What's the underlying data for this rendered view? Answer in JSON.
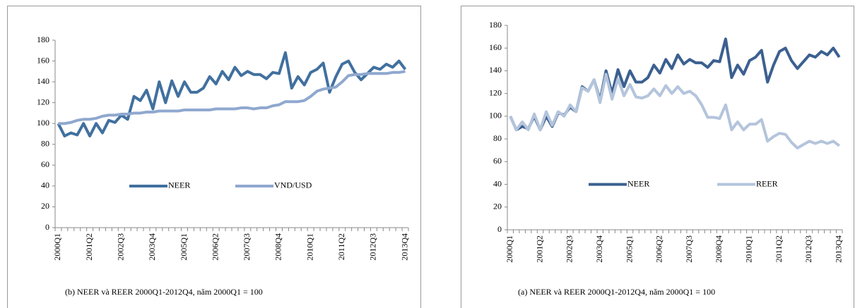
{
  "chart_data": [
    {
      "type": "line",
      "caption": "(b) NEER và REER  2000Q1-2012Q4, năm 2000Q1 = 100",
      "categories": [
        "2000Q1",
        null,
        null,
        null,
        null,
        "2001Q2",
        null,
        null,
        null,
        null,
        "2002Q3",
        null,
        null,
        null,
        null,
        "2003Q4",
        null,
        null,
        null,
        null,
        "2005Q1",
        null,
        null,
        null,
        null,
        "2006Q2",
        null,
        null,
        null,
        null,
        "2007Q3",
        null,
        null,
        null,
        null,
        "2008Q4",
        null,
        null,
        null,
        null,
        "2010Q1",
        null,
        null,
        null,
        null,
        "2011Q2",
        null,
        null,
        null,
        null,
        "2012Q3",
        null,
        null,
        null,
        null,
        "2013Q4"
      ],
      "series": [
        {
          "name": "NEER",
          "color": "#41709f",
          "values": [
            100,
            88,
            91,
            89,
            100,
            88,
            100,
            91,
            103,
            101,
            108,
            104,
            126,
            122,
            132,
            114,
            140,
            120,
            141,
            126,
            140,
            130,
            130,
            134,
            145,
            138,
            150,
            142,
            154,
            146,
            150,
            147,
            147,
            143,
            149,
            148,
            168,
            134,
            145,
            137,
            149,
            152,
            158,
            130,
            145,
            157,
            160,
            149,
            142,
            148,
            154,
            152,
            157,
            154,
            160,
            152
          ]
        },
        {
          "name": "VND/USD",
          "color": "#8fa8cf",
          "values": [
            100,
            100,
            101,
            103,
            104,
            104,
            105,
            107,
            108,
            108,
            109,
            109,
            110,
            110,
            111,
            111,
            112,
            112,
            112,
            112,
            113,
            113,
            113,
            113,
            113,
            114,
            114,
            114,
            114,
            115,
            115,
            114,
            115,
            115,
            117,
            118,
            121,
            121,
            121,
            122,
            126,
            131,
            133,
            134,
            135,
            140,
            146,
            147,
            147,
            148,
            148,
            148,
            148,
            149,
            149,
            150
          ]
        }
      ],
      "ylim": [
        0,
        180
      ],
      "yticks": [
        0,
        20,
        40,
        60,
        80,
        100,
        120,
        140,
        160,
        180
      ],
      "legend": "center"
    },
    {
      "type": "line",
      "caption": "(a) NEER và REER  2000Q1-2012Q4, năm 2000Q1 = 100",
      "categories": [
        "2000Q1",
        null,
        null,
        null,
        null,
        "2001Q2",
        null,
        null,
        null,
        null,
        "2002Q3",
        null,
        null,
        null,
        null,
        "2003Q4",
        null,
        null,
        null,
        null,
        "2005Q1",
        null,
        null,
        null,
        null,
        "2006Q2",
        null,
        null,
        null,
        null,
        "2007Q3",
        null,
        null,
        null,
        null,
        "2008Q4",
        null,
        null,
        null,
        null,
        "2010Q1",
        null,
        null,
        null,
        null,
        "2011Q2",
        null,
        null,
        null,
        null,
        "2012Q3",
        null,
        null,
        null,
        null,
        "2013Q4"
      ],
      "series": [
        {
          "name": "NEER",
          "color": "#3b6090",
          "values": [
            100,
            88,
            91,
            89,
            100,
            88,
            100,
            91,
            103,
            101,
            108,
            104,
            126,
            122,
            132,
            114,
            140,
            120,
            141,
            126,
            140,
            130,
            130,
            134,
            145,
            138,
            150,
            142,
            154,
            146,
            150,
            147,
            147,
            143,
            149,
            148,
            168,
            134,
            145,
            137,
            149,
            152,
            158,
            130,
            145,
            157,
            160,
            149,
            142,
            148,
            154,
            152,
            157,
            154,
            160,
            152
          ]
        },
        {
          "name": "REER",
          "color": "#b4c4dc",
          "values": [
            100,
            88,
            95,
            88,
            102,
            88,
            104,
            92,
            104,
            100,
            110,
            104,
            125,
            122,
            132,
            112,
            137,
            115,
            133,
            118,
            128,
            117,
            116,
            118,
            124,
            118,
            127,
            120,
            126,
            120,
            122,
            118,
            110,
            99,
            99,
            98,
            110,
            88,
            95,
            88,
            93,
            93,
            97,
            78,
            82,
            85,
            84,
            77,
            72,
            75,
            78,
            76,
            78,
            76,
            78,
            74
          ]
        }
      ],
      "ylim": [
        0,
        180
      ],
      "yticks": [
        0,
        20,
        40,
        60,
        80,
        100,
        120,
        140,
        160,
        180
      ],
      "legend": "center"
    }
  ]
}
